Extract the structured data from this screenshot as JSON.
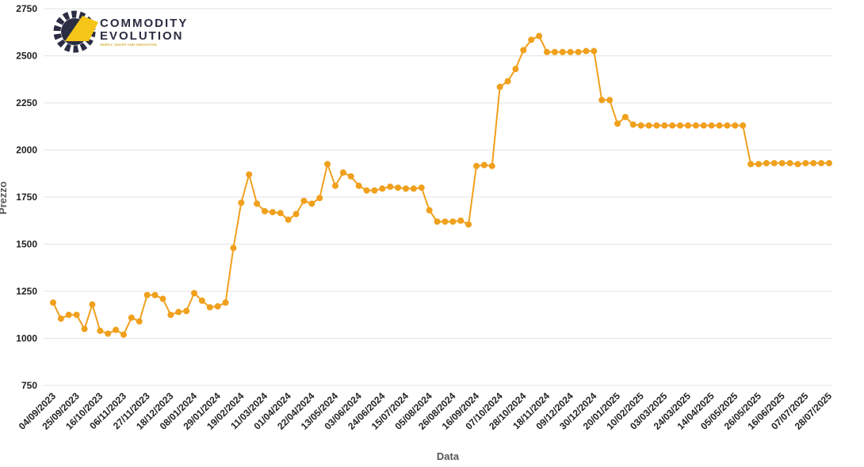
{
  "logo": {
    "line1": "COMMODITY",
    "line2": "EVOLUTION",
    "tagline": "SIMPLY, SMART AND INNOVATIVE"
  },
  "chart_data": {
    "type": "line",
    "x_label": "Data",
    "y_label": "Prezzo",
    "color": "#f0a01c",
    "grid": true,
    "categories": [
      "04/09/2023",
      null,
      null,
      "25/09/2023",
      null,
      null,
      "16/10/2023",
      null,
      null,
      "06/11/2023",
      null,
      null,
      "27/11/2023",
      null,
      null,
      "18/12/2023",
      null,
      null,
      "08/01/2024",
      null,
      null,
      "29/01/2024",
      null,
      null,
      "19/02/2024",
      null,
      null,
      "11/03/2024",
      null,
      null,
      "01/04/2024",
      null,
      null,
      "22/04/2024",
      null,
      null,
      "13/05/2024",
      null,
      null,
      "03/06/2024",
      null,
      null,
      "24/06/2024",
      null,
      null,
      "15/07/2024",
      null,
      null,
      "05/08/2024",
      null,
      null,
      "26/08/2024",
      null,
      null,
      "16/09/2024",
      null,
      null,
      "07/10/2024",
      null,
      null,
      "28/10/2024",
      null,
      null,
      "18/11/2024",
      null,
      null,
      "09/12/2024",
      null,
      null,
      "30/12/2024",
      null,
      null,
      "20/01/2025",
      null,
      null,
      "10/02/2025",
      null,
      null,
      "03/03/2025",
      null,
      null,
      "24/03/2025",
      null,
      null,
      "14/04/2025",
      null,
      null,
      "05/05/2025",
      null,
      null,
      "26/05/2025",
      null,
      null,
      "16/06/2025",
      null,
      null,
      "07/07/2025",
      null,
      null,
      "28/07/2025"
    ],
    "values": [
      1190,
      1105,
      1125,
      1125,
      1050,
      1180,
      1040,
      1025,
      1045,
      1020,
      1110,
      1090,
      1230,
      1230,
      1210,
      1125,
      1140,
      1145,
      1240,
      1200,
      1165,
      1170,
      1190,
      1480,
      1720,
      1870,
      1715,
      1675,
      1670,
      1665,
      1630,
      1660,
      1730,
      1715,
      1745,
      1925,
      1810,
      1880,
      1860,
      1810,
      1785,
      1785,
      1795,
      1805,
      1800,
      1795,
      1795,
      1800,
      1680,
      1620,
      1620,
      1620,
      1625,
      1605,
      1915,
      1920,
      1915,
      2335,
      2365,
      2430,
      2530,
      2585,
      2605,
      2520,
      2520,
      2520,
      2520,
      2520,
      2525,
      2525,
      2265,
      2265,
      2140,
      2175,
      2135,
      2130,
      2130,
      2130,
      2130,
      2130,
      2130,
      2130,
      2130,
      2130,
      2130,
      2130,
      2130,
      2130,
      2130,
      1925,
      1925,
      1930,
      1930,
      1930,
      1930,
      1925,
      1930,
      1930,
      1930,
      1930
    ],
    "ylim": [
      750,
      2750
    ],
    "yticks": [
      750,
      1000,
      1250,
      1500,
      1750,
      2000,
      2250,
      2500,
      2750
    ]
  }
}
